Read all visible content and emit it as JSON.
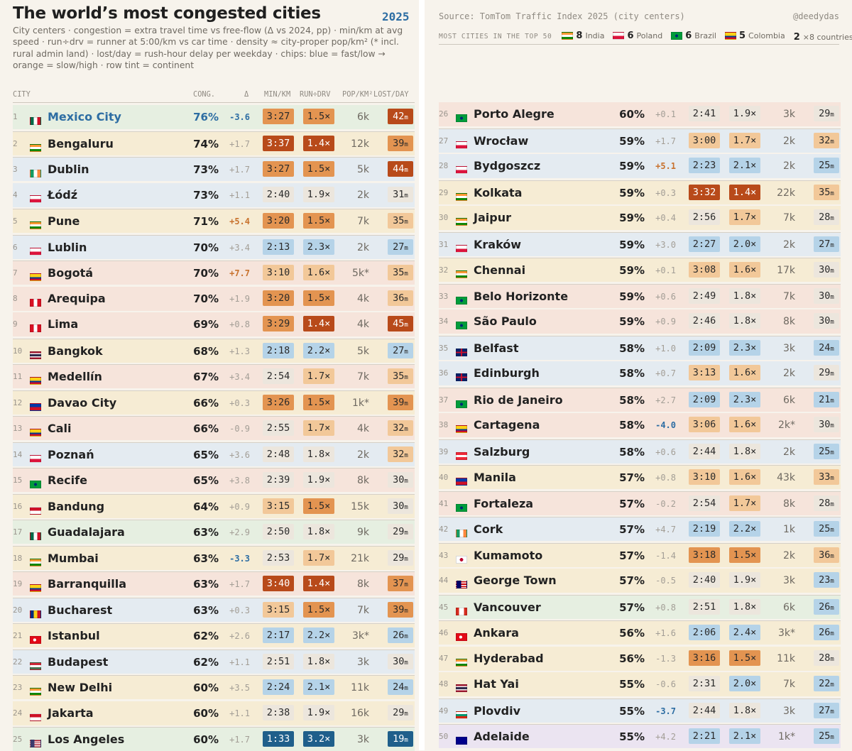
{
  "header": {
    "title": "The world’s most congested cities",
    "year": "2025",
    "subtitle": "City centers · congestion = extra travel time vs free-flow (Δ vs 2024, pp) · min/km at avg speed · run÷drv = runner at 5:00/km vs car time · density ≈ city-proper pop/km² (* incl. rural admin land) · lost/day = rush-hour delay per weekday · chips: blue = fast/low → orange = slow/high · row tint = continent",
    "source": "Source: TomTom Traffic Index 2025 (city centers)",
    "handle": "@deedydas"
  },
  "most_cities": {
    "label": "MOST CITIES IN THE TOP 50",
    "items": [
      {
        "count": "8",
        "country": "India",
        "flag": "in"
      },
      {
        "count": "6",
        "country": "Poland",
        "flag": "pl"
      },
      {
        "count": "6",
        "country": "Brazil",
        "flag": "br"
      },
      {
        "count": "5",
        "country": "Colombia",
        "flag": "co"
      },
      {
        "count": "2",
        "country": "×8 countries",
        "flag": ""
      }
    ]
  },
  "columns": {
    "city": "CITY",
    "congestion": "CONG.",
    "delta": "Δ",
    "min_km": "MIN/KM",
    "run_drv": "RUN÷DRV",
    "pop_km2": "POP/KM²",
    "lost_day": "LOST/DAY"
  },
  "chart_data": {
    "type": "table",
    "title": "The world’s most congested cities",
    "continent_tints": {
      "americas": "#e6efe1",
      "asia": "#f6ecd4",
      "europe": "#e4ebf1",
      "south-america": "#f6e4db",
      "oceania": "#ebe4f1"
    },
    "chip_colors": [
      "#1f5f8b",
      "#b5d3e8",
      "#ece6dd",
      "#f2c899",
      "#e39451",
      "#b84a1a"
    ],
    "rows": [
      {
        "rank": "1",
        "city": "Mexico City",
        "flag": "mx",
        "cong": "76%",
        "delta": "-3.6",
        "min_km": "3:27",
        "run_drv": "1.5×",
        "pop": "6k",
        "lost": "42",
        "lost_unit": "m",
        "tint": "americas",
        "mk_lvl": 5,
        "rd_lvl": 5,
        "lost_lvl": 6
      },
      {
        "rank": "2",
        "city": "Bengaluru",
        "flag": "in",
        "cong": "74%",
        "delta": "+1.7",
        "min_km": "3:37",
        "run_drv": "1.4×",
        "pop": "12k",
        "lost": "39",
        "lost_unit": "m",
        "tint": "asia",
        "mk_lvl": 6,
        "rd_lvl": 6,
        "lost_lvl": 5
      },
      {
        "rank": "3",
        "city": "Dublin",
        "flag": "ie",
        "cong": "73%",
        "delta": "+1.7",
        "min_km": "3:27",
        "run_drv": "1.5×",
        "pop": "5k",
        "lost": "44",
        "lost_unit": "m",
        "tint": "europe",
        "mk_lvl": 5,
        "rd_lvl": 5,
        "lost_lvl": 6
      },
      {
        "rank": "4",
        "city": "Łódź",
        "flag": "pl",
        "cong": "73%",
        "delta": "+1.1",
        "min_km": "2:40",
        "run_drv": "1.9×",
        "pop": "2k",
        "lost": "31",
        "lost_unit": "m",
        "tint": "europe",
        "mk_lvl": 3,
        "rd_lvl": 3,
        "lost_lvl": 3
      },
      {
        "rank": "5",
        "city": "Pune",
        "flag": "in",
        "cong": "71%",
        "delta": "+5.4",
        "min_km": "3:20",
        "run_drv": "1.5×",
        "pop": "7k",
        "lost": "35",
        "lost_unit": "m",
        "tint": "asia",
        "mk_lvl": 5,
        "rd_lvl": 5,
        "lost_lvl": 4
      },
      {
        "rank": "6",
        "city": "Lublin",
        "flag": "pl",
        "cong": "70%",
        "delta": "+3.4",
        "min_km": "2:13",
        "run_drv": "2.3×",
        "pop": "2k",
        "lost": "27",
        "lost_unit": "m",
        "tint": "europe",
        "mk_lvl": 2,
        "rd_lvl": 2,
        "lost_lvl": 2
      },
      {
        "rank": "7",
        "city": "Bogotá",
        "flag": "co",
        "cong": "70%",
        "delta": "+7.7",
        "min_km": "3:10",
        "run_drv": "1.6×",
        "pop": "5k*",
        "lost": "35",
        "lost_unit": "m",
        "tint": "south-america",
        "mk_lvl": 4,
        "rd_lvl": 4,
        "lost_lvl": 4
      },
      {
        "rank": "8",
        "city": "Arequipa",
        "flag": "pe",
        "cong": "70%",
        "delta": "+1.9",
        "min_km": "3:20",
        "run_drv": "1.5×",
        "pop": "4k",
        "lost": "36",
        "lost_unit": "m",
        "tint": "south-america",
        "mk_lvl": 5,
        "rd_lvl": 5,
        "lost_lvl": 4
      },
      {
        "rank": "9",
        "city": "Lima",
        "flag": "pe",
        "cong": "69%",
        "delta": "+0.8",
        "min_km": "3:29",
        "run_drv": "1.4×",
        "pop": "4k",
        "lost": "45",
        "lost_unit": "m",
        "tint": "south-america",
        "mk_lvl": 5,
        "rd_lvl": 6,
        "lost_lvl": 6
      },
      {
        "rank": "10",
        "city": "Bangkok",
        "flag": "th",
        "cong": "68%",
        "delta": "+1.3",
        "min_km": "2:18",
        "run_drv": "2.2×",
        "pop": "5k",
        "lost": "27",
        "lost_unit": "m",
        "tint": "asia",
        "mk_lvl": 2,
        "rd_lvl": 2,
        "lost_lvl": 2
      },
      {
        "rank": "11",
        "city": "Medellín",
        "flag": "co",
        "cong": "67%",
        "delta": "+3.4",
        "min_km": "2:54",
        "run_drv": "1.7×",
        "pop": "7k",
        "lost": "35",
        "lost_unit": "m",
        "tint": "south-america",
        "mk_lvl": 3,
        "rd_lvl": 4,
        "lost_lvl": 4
      },
      {
        "rank": "12",
        "city": "Davao City",
        "flag": "ph",
        "cong": "66%",
        "delta": "+0.3",
        "min_km": "3:26",
        "run_drv": "1.5×",
        "pop": "1k*",
        "lost": "39",
        "lost_unit": "m",
        "tint": "asia",
        "mk_lvl": 5,
        "rd_lvl": 5,
        "lost_lvl": 5
      },
      {
        "rank": "13",
        "city": "Cali",
        "flag": "co",
        "cong": "66%",
        "delta": "-0.9",
        "min_km": "2:55",
        "run_drv": "1.7×",
        "pop": "4k",
        "lost": "32",
        "lost_unit": "m",
        "tint": "south-america",
        "mk_lvl": 3,
        "rd_lvl": 4,
        "lost_lvl": 4
      },
      {
        "rank": "14",
        "city": "Poznań",
        "flag": "pl",
        "cong": "65%",
        "delta": "+3.6",
        "min_km": "2:48",
        "run_drv": "1.8×",
        "pop": "2k",
        "lost": "32",
        "lost_unit": "m",
        "tint": "europe",
        "mk_lvl": 3,
        "rd_lvl": 3,
        "lost_lvl": 4
      },
      {
        "rank": "15",
        "city": "Recife",
        "flag": "br",
        "cong": "65%",
        "delta": "+3.8",
        "min_km": "2:39",
        "run_drv": "1.9×",
        "pop": "8k",
        "lost": "30",
        "lost_unit": "m",
        "tint": "south-america",
        "mk_lvl": 3,
        "rd_lvl": 3,
        "lost_lvl": 3
      },
      {
        "rank": "16",
        "city": "Bandung",
        "flag": "id",
        "cong": "64%",
        "delta": "+0.9",
        "min_km": "3:15",
        "run_drv": "1.5×",
        "pop": "15k",
        "lost": "30",
        "lost_unit": "m",
        "tint": "asia",
        "mk_lvl": 4,
        "rd_lvl": 5,
        "lost_lvl": 3
      },
      {
        "rank": "17",
        "city": "Guadalajara",
        "flag": "mx",
        "cong": "63%",
        "delta": "+2.9",
        "min_km": "2:50",
        "run_drv": "1.8×",
        "pop": "9k",
        "lost": "29",
        "lost_unit": "m",
        "tint": "americas",
        "mk_lvl": 3,
        "rd_lvl": 3,
        "lost_lvl": 3
      },
      {
        "rank": "18",
        "city": "Mumbai",
        "flag": "in",
        "cong": "63%",
        "delta": "-3.3",
        "min_km": "2:53",
        "run_drv": "1.7×",
        "pop": "21k",
        "lost": "29",
        "lost_unit": "m",
        "tint": "asia",
        "mk_lvl": 3,
        "rd_lvl": 4,
        "lost_lvl": 3
      },
      {
        "rank": "19",
        "city": "Barranquilla",
        "flag": "co",
        "cong": "63%",
        "delta": "+1.7",
        "min_km": "3:40",
        "run_drv": "1.4×",
        "pop": "8k",
        "lost": "37",
        "lost_unit": "m",
        "tint": "south-america",
        "mk_lvl": 6,
        "rd_lvl": 6,
        "lost_lvl": 5
      },
      {
        "rank": "20",
        "city": "Bucharest",
        "flag": "ro",
        "cong": "63%",
        "delta": "+0.3",
        "min_km": "3:15",
        "run_drv": "1.5×",
        "pop": "7k",
        "lost": "39",
        "lost_unit": "m",
        "tint": "europe",
        "mk_lvl": 4,
        "rd_lvl": 5,
        "lost_lvl": 5
      },
      {
        "rank": "21",
        "city": "Istanbul",
        "flag": "tr",
        "cong": "62%",
        "delta": "+2.6",
        "min_km": "2:17",
        "run_drv": "2.2×",
        "pop": "3k*",
        "lost": "26",
        "lost_unit": "m",
        "tint": "asia",
        "mk_lvl": 2,
        "rd_lvl": 2,
        "lost_lvl": 2
      },
      {
        "rank": "22",
        "city": "Budapest",
        "flag": "hu",
        "cong": "62%",
        "delta": "+1.1",
        "min_km": "2:51",
        "run_drv": "1.8×",
        "pop": "3k",
        "lost": "30",
        "lost_unit": "m",
        "tint": "europe",
        "mk_lvl": 3,
        "rd_lvl": 3,
        "lost_lvl": 3
      },
      {
        "rank": "23",
        "city": "New Delhi",
        "flag": "in",
        "cong": "60%",
        "delta": "+3.5",
        "min_km": "2:24",
        "run_drv": "2.1×",
        "pop": "11k",
        "lost": "24",
        "lost_unit": "m",
        "tint": "asia",
        "mk_lvl": 2,
        "rd_lvl": 2,
        "lost_lvl": 2
      },
      {
        "rank": "24",
        "city": "Jakarta",
        "flag": "id",
        "cong": "60%",
        "delta": "+1.1",
        "min_km": "2:38",
        "run_drv": "1.9×",
        "pop": "16k",
        "lost": "29",
        "lost_unit": "m",
        "tint": "asia",
        "mk_lvl": 3,
        "rd_lvl": 3,
        "lost_lvl": 3
      },
      {
        "rank": "25",
        "city": "Los Angeles",
        "flag": "us",
        "cong": "60%",
        "delta": "+1.7",
        "min_km": "1:33",
        "run_drv": "3.2×",
        "pop": "3k",
        "lost": "19",
        "lost_unit": "m",
        "tint": "americas",
        "mk_lvl": 1,
        "rd_lvl": 1,
        "lost_lvl": 1
      },
      {
        "rank": "26",
        "city": "Porto Alegre",
        "flag": "br",
        "cong": "60%",
        "delta": "+0.1",
        "min_km": "2:41",
        "run_drv": "1.9×",
        "pop": "3k",
        "lost": "29",
        "lost_unit": "m",
        "tint": "south-america",
        "mk_lvl": 3,
        "rd_lvl": 3,
        "lost_lvl": 3
      },
      {
        "rank": "27",
        "city": "Wrocław",
        "flag": "pl",
        "cong": "59%",
        "delta": "+1.7",
        "min_km": "3:00",
        "run_drv": "1.7×",
        "pop": "2k",
        "lost": "32",
        "lost_unit": "m",
        "tint": "europe",
        "mk_lvl": 4,
        "rd_lvl": 4,
        "lost_lvl": 4
      },
      {
        "rank": "28",
        "city": "Bydgoszcz",
        "flag": "pl",
        "cong": "59%",
        "delta": "+5.1",
        "min_km": "2:23",
        "run_drv": "2.1×",
        "pop": "2k",
        "lost": "25",
        "lost_unit": "m",
        "tint": "europe",
        "mk_lvl": 2,
        "rd_lvl": 2,
        "lost_lvl": 2
      },
      {
        "rank": "29",
        "city": "Kolkata",
        "flag": "in",
        "cong": "59%",
        "delta": "+0.3",
        "min_km": "3:32",
        "run_drv": "1.4×",
        "pop": "22k",
        "lost": "35",
        "lost_unit": "m",
        "tint": "asia",
        "mk_lvl": 6,
        "rd_lvl": 6,
        "lost_lvl": 4
      },
      {
        "rank": "30",
        "city": "Jaipur",
        "flag": "in",
        "cong": "59%",
        "delta": "+0.4",
        "min_km": "2:56",
        "run_drv": "1.7×",
        "pop": "7k",
        "lost": "28",
        "lost_unit": "m",
        "tint": "asia",
        "mk_lvl": 3,
        "rd_lvl": 4,
        "lost_lvl": 3
      },
      {
        "rank": "31",
        "city": "Kraków",
        "flag": "pl",
        "cong": "59%",
        "delta": "+3.0",
        "min_km": "2:27",
        "run_drv": "2.0×",
        "pop": "2k",
        "lost": "27",
        "lost_unit": "m",
        "tint": "europe",
        "mk_lvl": 2,
        "rd_lvl": 2,
        "lost_lvl": 2
      },
      {
        "rank": "32",
        "city": "Chennai",
        "flag": "in",
        "cong": "59%",
        "delta": "+0.1",
        "min_km": "3:08",
        "run_drv": "1.6×",
        "pop": "17k",
        "lost": "30",
        "lost_unit": "m",
        "tint": "asia",
        "mk_lvl": 4,
        "rd_lvl": 4,
        "lost_lvl": 3
      },
      {
        "rank": "33",
        "city": "Belo Horizonte",
        "flag": "br",
        "cong": "59%",
        "delta": "+0.6",
        "min_km": "2:49",
        "run_drv": "1.8×",
        "pop": "7k",
        "lost": "30",
        "lost_unit": "m",
        "tint": "south-america",
        "mk_lvl": 3,
        "rd_lvl": 3,
        "lost_lvl": 3
      },
      {
        "rank": "34",
        "city": "São Paulo",
        "flag": "br",
        "cong": "59%",
        "delta": "+0.9",
        "min_km": "2:46",
        "run_drv": "1.8×",
        "pop": "8k",
        "lost": "30",
        "lost_unit": "m",
        "tint": "south-america",
        "mk_lvl": 3,
        "rd_lvl": 3,
        "lost_lvl": 3
      },
      {
        "rank": "35",
        "city": "Belfast",
        "flag": "gb",
        "cong": "58%",
        "delta": "+1.0",
        "min_km": "2:09",
        "run_drv": "2.3×",
        "pop": "3k",
        "lost": "24",
        "lost_unit": "m",
        "tint": "europe",
        "mk_lvl": 2,
        "rd_lvl": 2,
        "lost_lvl": 2
      },
      {
        "rank": "36",
        "city": "Edinburgh",
        "flag": "gb",
        "cong": "58%",
        "delta": "+0.7",
        "min_km": "3:13",
        "run_drv": "1.6×",
        "pop": "2k",
        "lost": "29",
        "lost_unit": "m",
        "tint": "europe",
        "mk_lvl": 4,
        "rd_lvl": 4,
        "lost_lvl": 3
      },
      {
        "rank": "37",
        "city": "Rio de Janeiro",
        "flag": "br",
        "cong": "58%",
        "delta": "+2.7",
        "min_km": "2:09",
        "run_drv": "2.3×",
        "pop": "6k",
        "lost": "21",
        "lost_unit": "m",
        "tint": "south-america",
        "mk_lvl": 2,
        "rd_lvl": 2,
        "lost_lvl": 2
      },
      {
        "rank": "38",
        "city": "Cartagena",
        "flag": "co",
        "cong": "58%",
        "delta": "-4.0",
        "min_km": "3:06",
        "run_drv": "1.6×",
        "pop": "2k*",
        "lost": "30",
        "lost_unit": "m",
        "tint": "south-america",
        "mk_lvl": 4,
        "rd_lvl": 4,
        "lost_lvl": 3
      },
      {
        "rank": "39",
        "city": "Salzburg",
        "flag": "at",
        "cong": "58%",
        "delta": "+0.6",
        "min_km": "2:44",
        "run_drv": "1.8×",
        "pop": "2k",
        "lost": "25",
        "lost_unit": "m",
        "tint": "europe",
        "mk_lvl": 3,
        "rd_lvl": 3,
        "lost_lvl": 2
      },
      {
        "rank": "40",
        "city": "Manila",
        "flag": "ph",
        "cong": "57%",
        "delta": "+0.8",
        "min_km": "3:10",
        "run_drv": "1.6×",
        "pop": "43k",
        "lost": "33",
        "lost_unit": "m",
        "tint": "asia",
        "mk_lvl": 4,
        "rd_lvl": 4,
        "lost_lvl": 4
      },
      {
        "rank": "41",
        "city": "Fortaleza",
        "flag": "br",
        "cong": "57%",
        "delta": "-0.2",
        "min_km": "2:54",
        "run_drv": "1.7×",
        "pop": "8k",
        "lost": "28",
        "lost_unit": "m",
        "tint": "south-america",
        "mk_lvl": 3,
        "rd_lvl": 4,
        "lost_lvl": 3
      },
      {
        "rank": "42",
        "city": "Cork",
        "flag": "ie",
        "cong": "57%",
        "delta": "+4.7",
        "min_km": "2:19",
        "run_drv": "2.2×",
        "pop": "1k",
        "lost": "25",
        "lost_unit": "m",
        "tint": "europe",
        "mk_lvl": 2,
        "rd_lvl": 2,
        "lost_lvl": 2
      },
      {
        "rank": "43",
        "city": "Kumamoto",
        "flag": "jp",
        "cong": "57%",
        "delta": "-1.4",
        "min_km": "3:18",
        "run_drv": "1.5×",
        "pop": "2k",
        "lost": "36",
        "lost_unit": "m",
        "tint": "asia",
        "mk_lvl": 5,
        "rd_lvl": 5,
        "lost_lvl": 4
      },
      {
        "rank": "44",
        "city": "George Town",
        "flag": "my",
        "cong": "57%",
        "delta": "-0.5",
        "min_km": "2:40",
        "run_drv": "1.9×",
        "pop": "3k",
        "lost": "23",
        "lost_unit": "m",
        "tint": "asia",
        "mk_lvl": 3,
        "rd_lvl": 3,
        "lost_lvl": 2
      },
      {
        "rank": "45",
        "city": "Vancouver",
        "flag": "ca",
        "cong": "57%",
        "delta": "+0.8",
        "min_km": "2:51",
        "run_drv": "1.8×",
        "pop": "6k",
        "lost": "26",
        "lost_unit": "m",
        "tint": "americas",
        "mk_lvl": 3,
        "rd_lvl": 3,
        "lost_lvl": 2
      },
      {
        "rank": "46",
        "city": "Ankara",
        "flag": "tr",
        "cong": "56%",
        "delta": "+1.6",
        "min_km": "2:06",
        "run_drv": "2.4×",
        "pop": "3k*",
        "lost": "26",
        "lost_unit": "m",
        "tint": "asia",
        "mk_lvl": 2,
        "rd_lvl": 2,
        "lost_lvl": 2
      },
      {
        "rank": "47",
        "city": "Hyderabad",
        "flag": "in",
        "cong": "56%",
        "delta": "-1.3",
        "min_km": "3:16",
        "run_drv": "1.5×",
        "pop": "11k",
        "lost": "28",
        "lost_unit": "m",
        "tint": "asia",
        "mk_lvl": 5,
        "rd_lvl": 5,
        "lost_lvl": 3
      },
      {
        "rank": "48",
        "city": "Hat Yai",
        "flag": "th",
        "cong": "55%",
        "delta": "-0.6",
        "min_km": "2:31",
        "run_drv": "2.0×",
        "pop": "7k",
        "lost": "22",
        "lost_unit": "m",
        "tint": "asia",
        "mk_lvl": 3,
        "rd_lvl": 2,
        "lost_lvl": 2
      },
      {
        "rank": "49",
        "city": "Plovdiv",
        "flag": "bg",
        "cong": "55%",
        "delta": "-3.7",
        "min_km": "2:44",
        "run_drv": "1.8×",
        "pop": "3k",
        "lost": "27",
        "lost_unit": "m",
        "tint": "europe",
        "mk_lvl": 3,
        "rd_lvl": 3,
        "lost_lvl": 2
      },
      {
        "rank": "50",
        "city": "Adelaide",
        "flag": "au",
        "cong": "55%",
        "delta": "+4.2",
        "min_km": "2:21",
        "run_drv": "2.1×",
        "pop": "1k*",
        "lost": "25",
        "lost_unit": "m",
        "tint": "oceania",
        "mk_lvl": 2,
        "rd_lvl": 2,
        "lost_lvl": 2
      }
    ]
  }
}
